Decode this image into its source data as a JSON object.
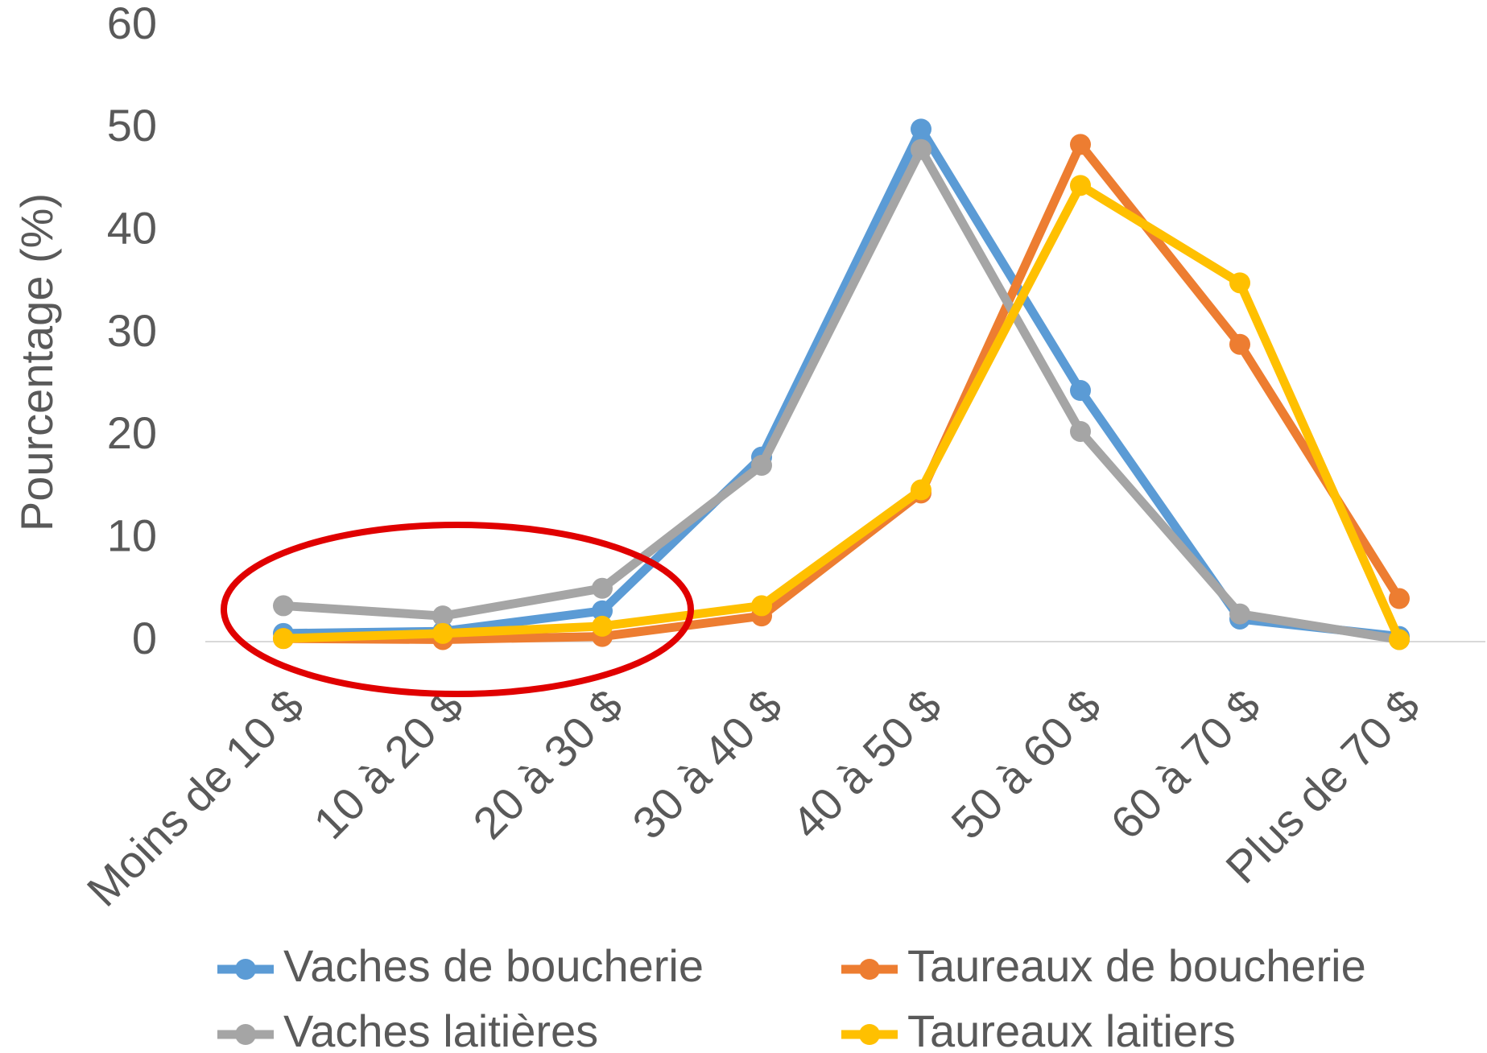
{
  "chart_data": {
    "type": "line",
    "y_label": "Pourcentage (%)",
    "categories": [
      "Moins de 10 $",
      "10 à 20 $",
      "20 à 30 $",
      "30 à 40 $",
      "40 à 50 $",
      "50 à 60 $",
      "60 à 70 $",
      "Plus de 70 $"
    ],
    "series": [
      {
        "name": "Vaches de boucherie",
        "color": "#5b9bd5",
        "values": [
          0.8,
          1,
          3,
          18,
          50,
          24.5,
          2.2,
          0.5
        ]
      },
      {
        "name": "Taureaux de boucherie",
        "color": "#ed7d31",
        "values": [
          0.3,
          0.2,
          0.5,
          2.5,
          14.5,
          48.5,
          29,
          4.2
        ]
      },
      {
        "name": "Vaches laitières",
        "color": "#a5a5a5",
        "values": [
          3.5,
          2.5,
          5.2,
          17.2,
          48,
          20.5,
          2.7,
          0.2
        ]
      },
      {
        "name": "Taureaux laitiers",
        "color": "#ffc000",
        "values": [
          0.3,
          0.8,
          1.5,
          3.5,
          14.8,
          44.5,
          35,
          0.2
        ]
      }
    ],
    "ylim": [
      0,
      60
    ],
    "yticks": [
      0,
      10,
      20,
      30,
      40,
      50,
      60
    ],
    "grid": false
  }
}
